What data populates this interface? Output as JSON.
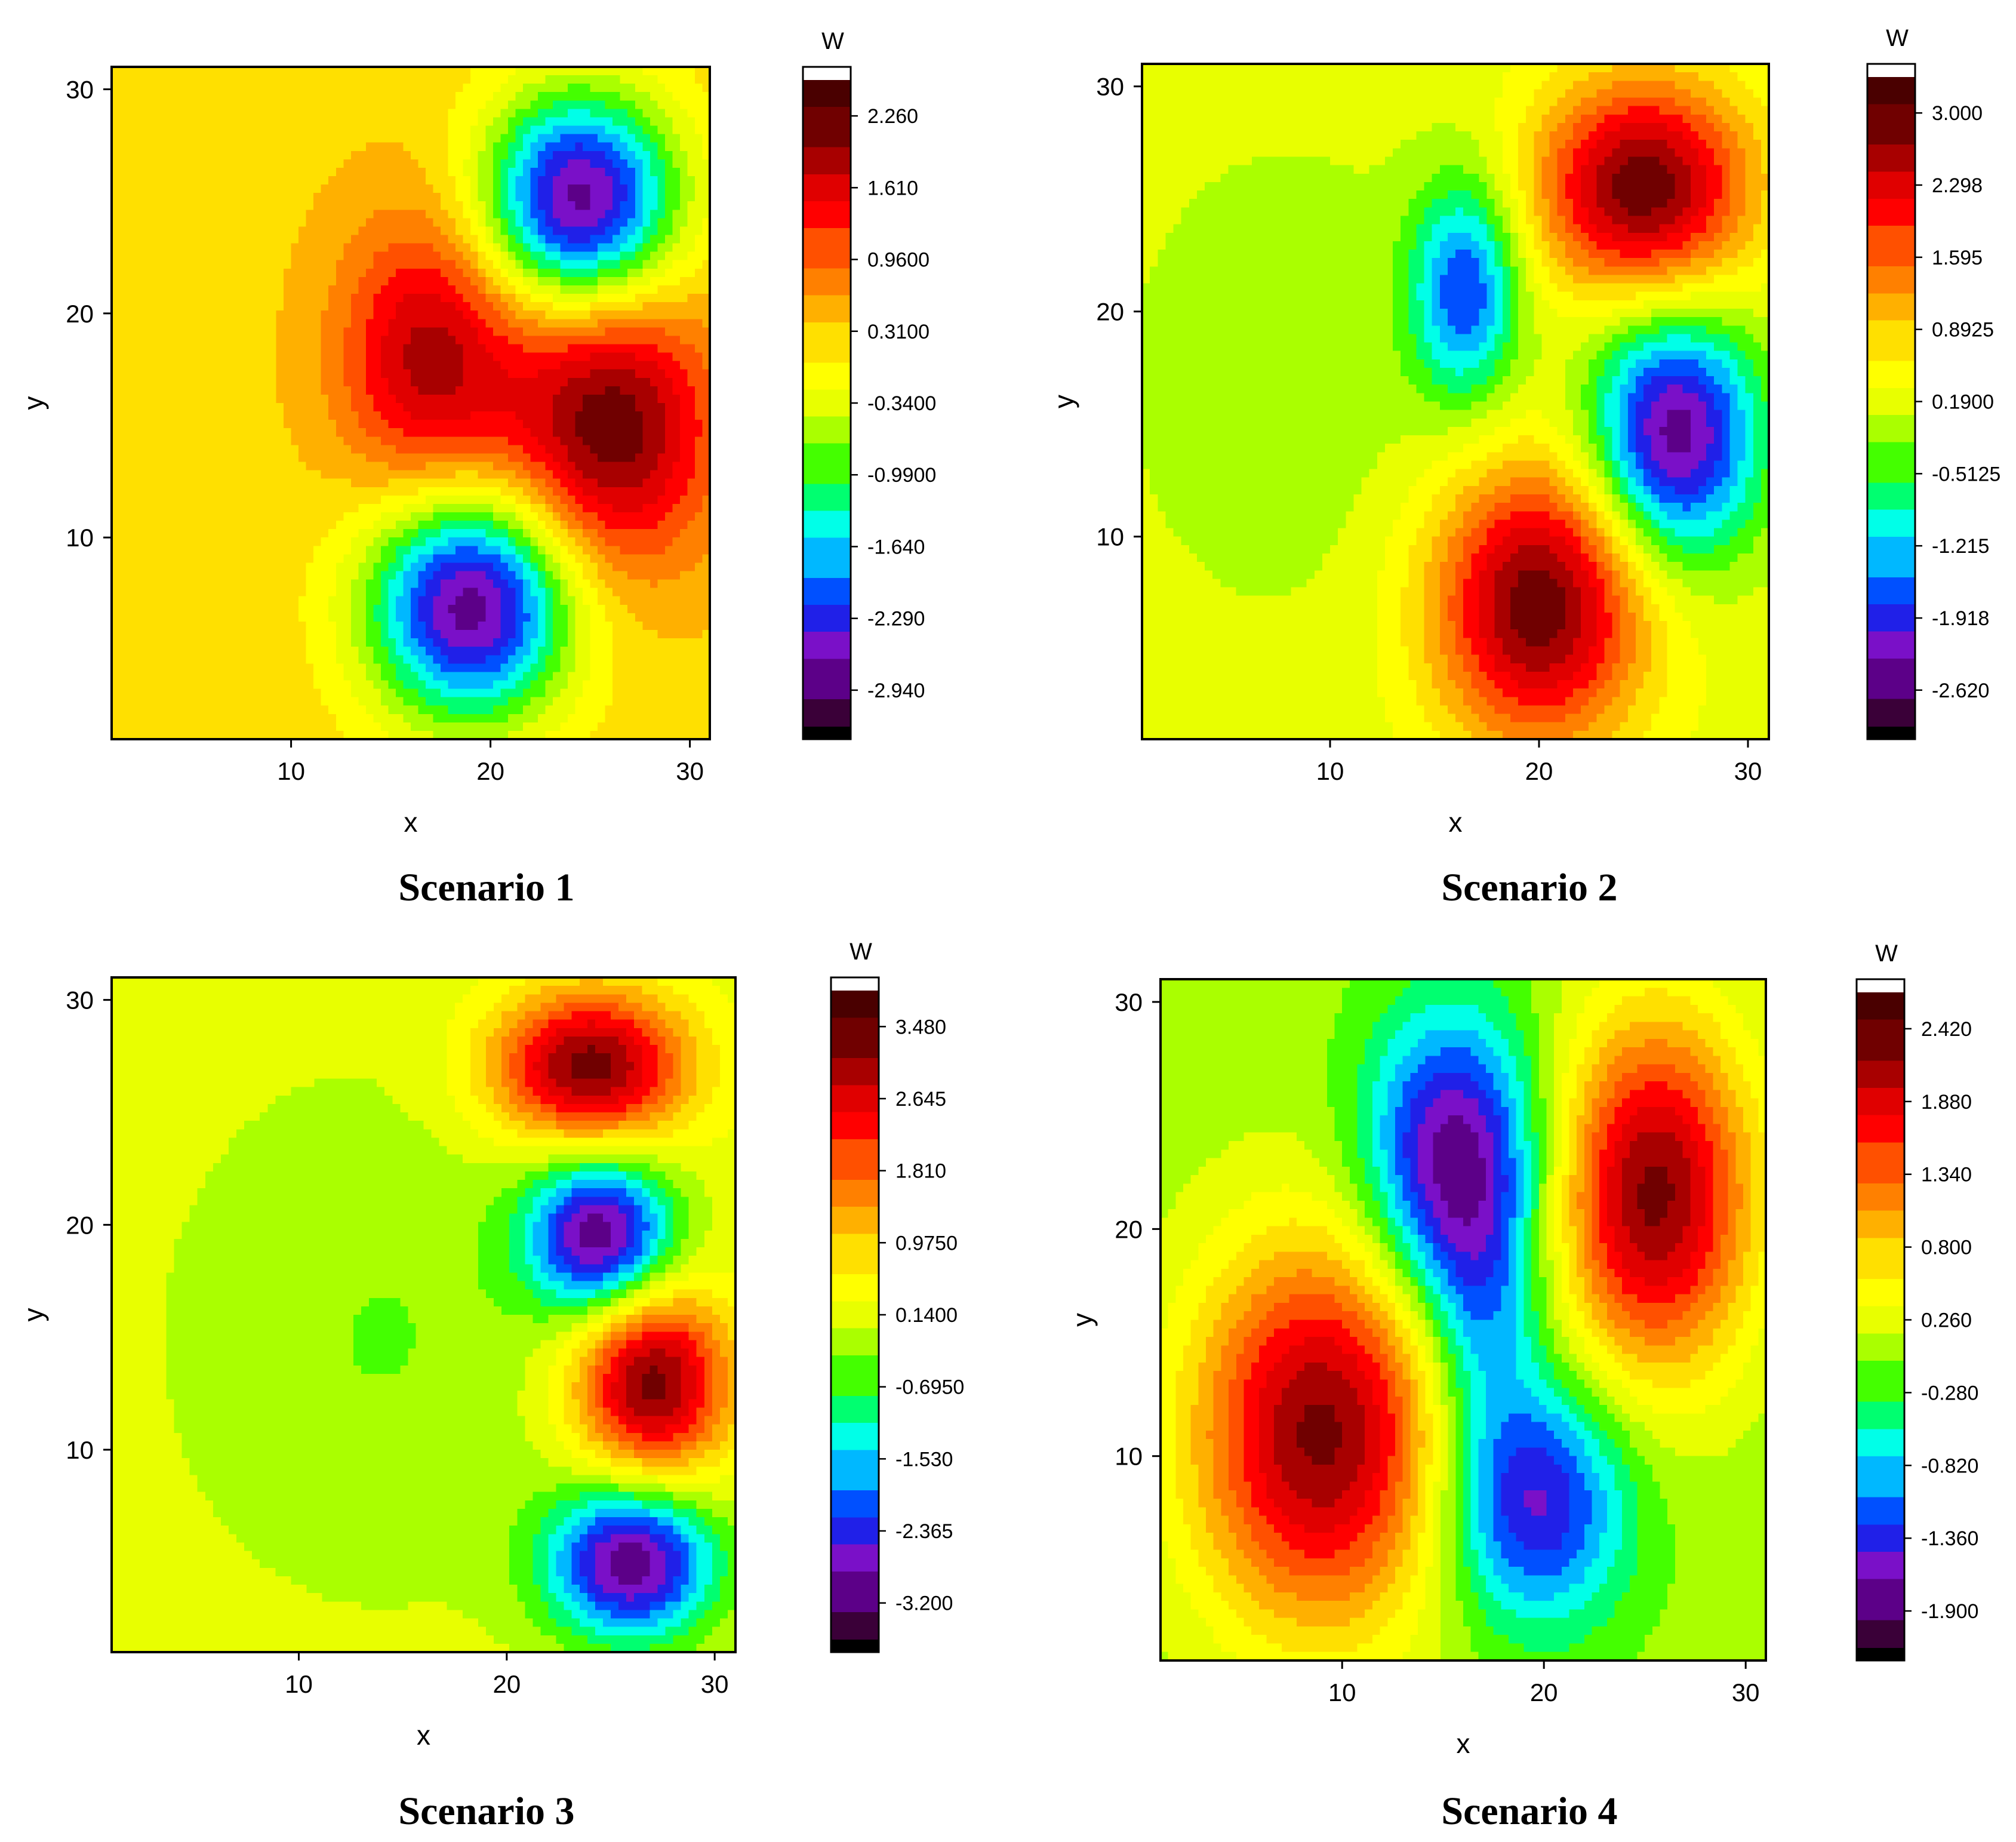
{
  "colormap": [
    "#000000",
    "#3a0038",
    "#5c0088",
    "#7a10c8",
    "#2020e8",
    "#0050ff",
    "#00b8ff",
    "#00ffe8",
    "#00ff70",
    "#44ff00",
    "#aaff00",
    "#e8ff00",
    "#ffff00",
    "#ffe000",
    "#ffb000",
    "#ff8000",
    "#ff5000",
    "#ff0000",
    "#e00000",
    "#a80000",
    "#700000",
    "#4a0000",
    "#ffffff"
  ],
  "chart_data": [
    {
      "type": "heatmap",
      "caption": "Scenario 1",
      "xlabel": "x",
      "ylabel": "y",
      "colorbar_title": "W",
      "xlim": [
        1,
        31
      ],
      "ylim": [
        1,
        31
      ],
      "xticks": [
        10,
        20,
        30
      ],
      "yticks": [
        10,
        20,
        30
      ],
      "zlim": [
        -3.265,
        2.585
      ],
      "colorbar_labels": [
        "2.260",
        "1.610",
        "0.9600",
        "0.3100",
        "-0.3400",
        "-0.9900",
        "-1.640",
        "-2.290",
        "-2.940"
      ],
      "colorbar_values": [
        2.26,
        1.61,
        0.96,
        0.31,
        -0.34,
        -0.99,
        -1.64,
        -2.29,
        -2.94
      ],
      "baseline": 0.27,
      "features": [
        {
          "x": 24.5,
          "y": 25.0,
          "sx": 3.4,
          "sy": 3.4,
          "amp": -3.2
        },
        {
          "x": 19.0,
          "y": 7.0,
          "sx": 3.6,
          "sy": 3.6,
          "amp": -3.2
        },
        {
          "x": 26.0,
          "y": 15.0,
          "sx": 3.6,
          "sy": 4.5,
          "amp": 2.0
        },
        {
          "x": 17.0,
          "y": 18.0,
          "sx": 3.2,
          "sy": 4.5,
          "amp": 1.6
        }
      ]
    },
    {
      "type": "heatmap",
      "caption": "Scenario 2",
      "xlabel": "x",
      "ylabel": "y",
      "colorbar_title": "W",
      "xlim": [
        1,
        31
      ],
      "ylim": [
        1,
        31
      ],
      "xticks": [
        10,
        20,
        30
      ],
      "yticks": [
        10,
        20,
        30
      ],
      "zlim": [
        -2.97,
        3.35
      ],
      "colorbar_labels": [
        "3.000",
        "2.298",
        "1.595",
        "0.8925",
        "0.1900",
        "-0.5125",
        "-1.215",
        "-1.918",
        "-2.620"
      ],
      "colorbar_values": [
        3.0,
        2.298,
        1.595,
        0.8925,
        0.19,
        -0.5125,
        -1.215,
        -1.918,
        -2.62
      ],
      "baseline": 0.2,
      "features": [
        {
          "x": 25.0,
          "y": 25.5,
          "sx": 3.6,
          "sy": 3.4,
          "amp": 2.8
        },
        {
          "x": 20.0,
          "y": 7.0,
          "sx": 3.6,
          "sy": 4.4,
          "amp": 2.8
        },
        {
          "x": 26.5,
          "y": 14.5,
          "sx": 2.8,
          "sy": 3.8,
          "amp": -2.8
        },
        {
          "x": 16.5,
          "y": 21.0,
          "sx": 1.8,
          "sy": 3.4,
          "amp": -1.9
        },
        {
          "x": 8.0,
          "y": 17.0,
          "sx": 6.0,
          "sy": 8.0,
          "amp": -0.35
        }
      ]
    },
    {
      "type": "heatmap",
      "caption": "Scenario 3",
      "xlabel": "x",
      "ylabel": "y",
      "colorbar_title": "W",
      "xlim": [
        1,
        31
      ],
      "ylim": [
        1,
        31
      ],
      "xticks": [
        10,
        20,
        30
      ],
      "yticks": [
        10,
        20,
        30
      ],
      "zlim": [
        -3.6175,
        3.8975
      ],
      "colorbar_labels": [
        "3.480",
        "2.645",
        "1.810",
        "0.9750",
        "0.1400",
        "-0.6950",
        "-1.530",
        "-2.365",
        "-3.200"
      ],
      "colorbar_values": [
        3.48,
        2.645,
        1.81,
        0.975,
        0.14,
        -0.695,
        -1.53,
        -2.365,
        -3.2
      ],
      "baseline": 0.14,
      "features": [
        {
          "x": 24.0,
          "y": 27.0,
          "sx": 3.3,
          "sy": 2.4,
          "amp": 3.3
        },
        {
          "x": 24.5,
          "y": 19.5,
          "sx": 2.4,
          "sy": 2.4,
          "amp": -3.3
        },
        {
          "x": 27.0,
          "y": 13.0,
          "sx": 2.6,
          "sy": 3.0,
          "amp": 3.3
        },
        {
          "x": 26.0,
          "y": 5.0,
          "sx": 2.8,
          "sy": 2.4,
          "amp": -3.3
        },
        {
          "x": 14.0,
          "y": 15.0,
          "sx": 7.0,
          "sy": 8.0,
          "amp": -0.55
        }
      ]
    },
    {
      "type": "heatmap",
      "caption": "Scenario 4",
      "xlabel": "x",
      "ylabel": "y",
      "colorbar_title": "W",
      "xlim": [
        1,
        31
      ],
      "ylim": [
        1,
        31
      ],
      "xticks": [
        10,
        20,
        30
      ],
      "yticks": [
        10,
        20,
        30
      ],
      "zlim": [
        -2.17,
        2.69
      ],
      "colorbar_labels": [
        "2.420",
        "1.880",
        "1.340",
        "0.800",
        "0.260",
        "-0.280",
        "-0.820",
        "-1.360",
        "-1.900"
      ],
      "colorbar_values": [
        2.42,
        1.88,
        1.34,
        0.8,
        0.26,
        -0.28,
        -0.82,
        -1.36,
        -1.9
      ],
      "baseline": 0.0,
      "features": [
        {
          "x": 9.0,
          "y": 11.0,
          "sx": 4.5,
          "sy": 6.0,
          "amp": 2.3
        },
        {
          "x": 25.5,
          "y": 21.5,
          "sx": 3.4,
          "sy": 5.5,
          "amp": 2.3
        },
        {
          "x": 15.5,
          "y": 23.0,
          "sx": 3.0,
          "sy": 4.5,
          "amp": -1.9
        },
        {
          "x": 19.5,
          "y": 8.0,
          "sx": 3.2,
          "sy": 3.8,
          "amp": -1.6
        },
        {
          "x": 17.0,
          "y": 16.0,
          "sx": 2.0,
          "sy": 4.0,
          "amp": -0.8
        }
      ]
    }
  ]
}
